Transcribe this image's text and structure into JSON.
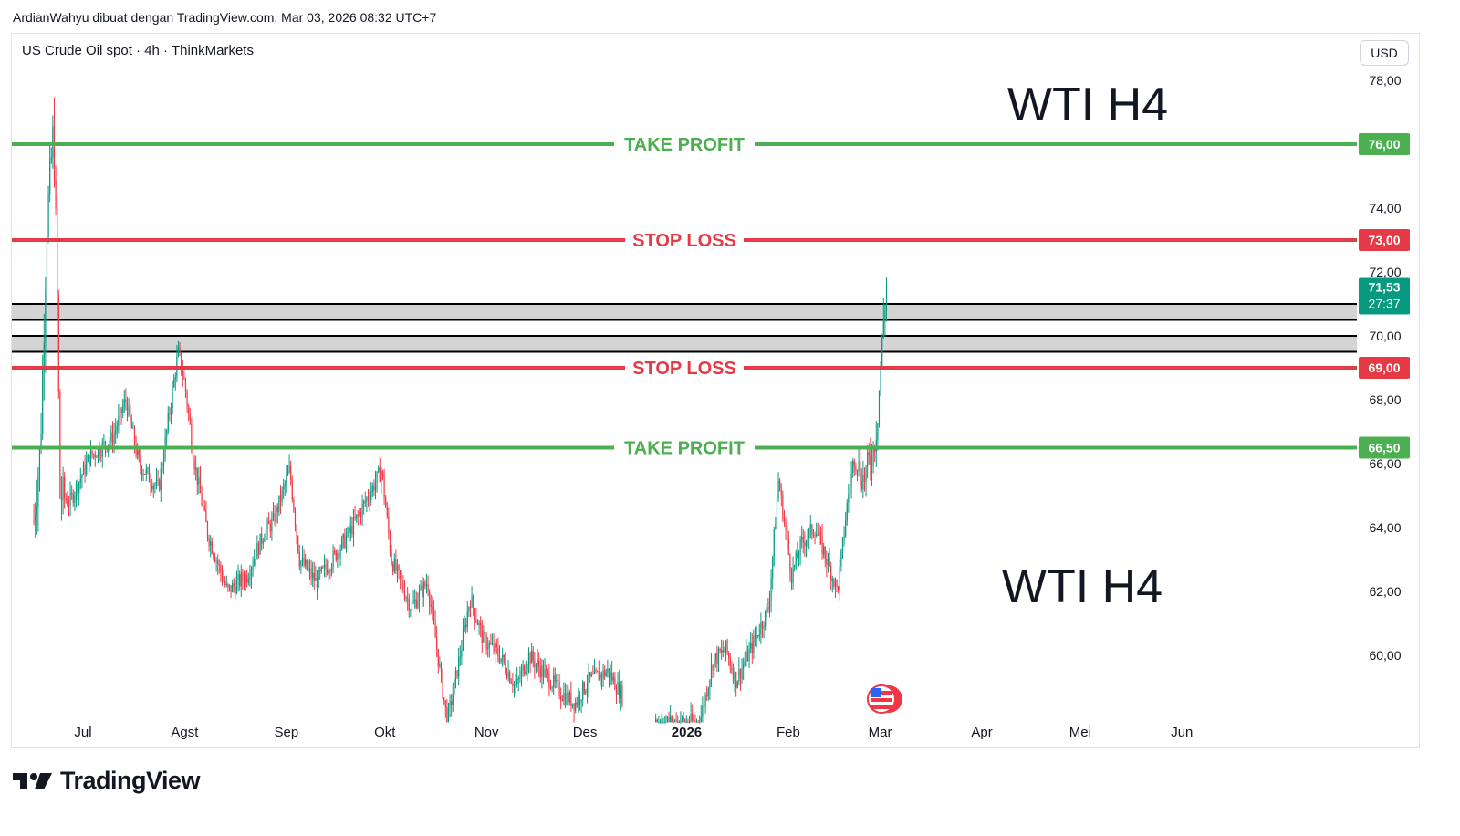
{
  "header": {
    "caption": "ArdianWahyu dibuat dengan TradingView.com, Mar 03, 2026 08:32 UTC+7",
    "symbol": "US Crude Oil spot · 4h · ThinkMarkets",
    "currency": "USD"
  },
  "footer": {
    "brand": "TradingView"
  },
  "colors": {
    "up": "#089981",
    "down": "#f23645",
    "take_profit": "#4caf50",
    "stop_loss": "#e53945",
    "zone": "#d4d4d4",
    "last_price": "#089981"
  },
  "chart_data": {
    "type": "candlestick",
    "title": "WTI H4",
    "title_repeat": "WTI H4",
    "y_axis": {
      "ticks": [
        "78,00",
        "74,00",
        "72,00",
        "70,00",
        "68,00",
        "66,00",
        "64,00",
        "62,00",
        "60,00"
      ],
      "ylim": [
        57.9,
        79.0
      ]
    },
    "x_axis": {
      "ticks": [
        "Jul",
        "Agst",
        "Sep",
        "Okt",
        "Nov",
        "Des",
        "2026",
        "Feb",
        "Mar",
        "Apr",
        "Mei",
        "Jun"
      ]
    },
    "levels": [
      {
        "label": "TAKE PROFIT",
        "price": 76.0,
        "price_label": "76,00",
        "kind": "take_profit"
      },
      {
        "label": "STOP LOSS",
        "price": 73.0,
        "price_label": "73,00",
        "kind": "stop_loss"
      },
      {
        "label": "STOP LOSS",
        "price": 69.0,
        "price_label": "69,00",
        "kind": "stop_loss"
      },
      {
        "label": "TAKE PROFIT",
        "price": 66.5,
        "price_label": "66,50",
        "kind": "take_profit"
      }
    ],
    "zones": [
      {
        "from": 70.5,
        "to": 71.0
      },
      {
        "from": 69.5,
        "to": 70.0
      }
    ],
    "last_price": {
      "value": 71.53,
      "label": "71,53",
      "countdown": "27:37"
    },
    "price_path": [
      [
        "2025-06-16",
        64.2
      ],
      [
        "2025-06-18",
        66.5
      ],
      [
        "2025-06-20",
        73.5
      ],
      [
        "2025-06-22",
        76.5
      ],
      [
        "2025-06-23",
        72.0
      ],
      [
        "2025-06-24",
        65.0
      ],
      [
        "2025-06-27",
        64.8
      ],
      [
        "2025-07-03",
        66.2
      ],
      [
        "2025-07-10",
        66.8
      ],
      [
        "2025-07-14",
        68.0
      ],
      [
        "2025-07-18",
        66.0
      ],
      [
        "2025-07-24",
        65.2
      ],
      [
        "2025-07-30",
        69.5
      ],
      [
        "2025-08-01",
        68.5
      ],
      [
        "2025-08-04",
        66.0
      ],
      [
        "2025-08-08",
        63.8
      ],
      [
        "2025-08-14",
        62.0
      ],
      [
        "2025-08-20",
        62.5
      ],
      [
        "2025-08-25",
        63.8
      ],
      [
        "2025-08-28",
        64.2
      ],
      [
        "2025-09-02",
        65.8
      ],
      [
        "2025-09-05",
        63.0
      ],
      [
        "2025-09-10",
        62.3
      ],
      [
        "2025-09-15",
        63.0
      ],
      [
        "2025-09-20",
        63.8
      ],
      [
        "2025-09-25",
        64.8
      ],
      [
        "2025-09-30",
        65.8
      ],
      [
        "2025-10-03",
        63.0
      ],
      [
        "2025-10-09",
        61.5
      ],
      [
        "2025-10-14",
        62.3
      ],
      [
        "2025-10-20",
        57.9
      ],
      [
        "2025-10-23",
        59.5
      ],
      [
        "2025-10-27",
        61.8
      ],
      [
        "2025-10-31",
        60.5
      ],
      [
        "2025-11-05",
        60.0
      ],
      [
        "2025-11-10",
        59.0
      ],
      [
        "2025-11-14",
        60.0
      ],
      [
        "2025-11-18",
        59.5
      ],
      [
        "2025-11-24",
        58.8
      ],
      [
        "2025-11-28",
        58.5
      ],
      [
        "2025-12-02",
        59.2
      ],
      [
        "2025-12-08",
        59.5
      ],
      [
        "2025-12-12",
        58.8
      ],
      [
        "2025-12-18",
        57.9
      ],
      [
        "2025-12-24",
        57.9
      ],
      [
        "2025-12-30",
        57.9
      ],
      [
        "2026-01-05",
        57.9
      ],
      [
        "2026-01-09",
        59.8
      ],
      [
        "2026-01-13",
        60.2
      ],
      [
        "2026-01-16",
        59.2
      ],
      [
        "2026-01-21",
        60.3
      ],
      [
        "2026-01-26",
        61.5
      ],
      [
        "2026-01-29",
        65.5
      ],
      [
        "2026-02-02",
        62.5
      ],
      [
        "2026-02-05",
        63.5
      ],
      [
        "2026-02-09",
        64.0
      ],
      [
        "2026-02-12",
        63.2
      ],
      [
        "2026-02-16",
        62.0
      ],
      [
        "2026-02-19",
        64.8
      ],
      [
        "2026-02-21",
        66.2
      ],
      [
        "2026-02-24",
        65.5
      ],
      [
        "2026-02-27",
        66.5
      ],
      [
        "2026-02-28",
        67.2
      ],
      [
        "2026-03-02",
        70.5
      ],
      [
        "2026-03-03",
        71.53
      ]
    ]
  }
}
